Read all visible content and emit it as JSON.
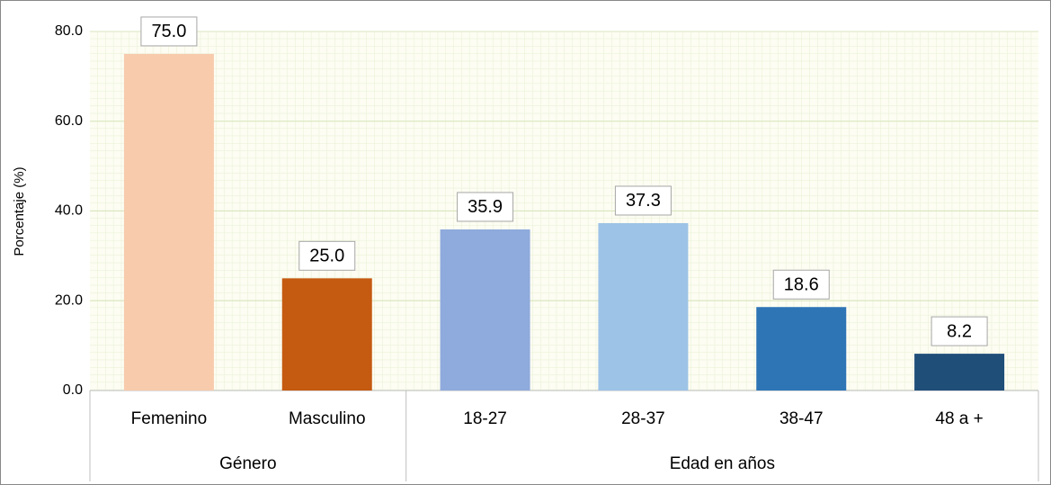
{
  "chart_data": {
    "type": "bar",
    "ylabel": "Porcentaje (%)",
    "groups": [
      {
        "name": "Género",
        "categories": [
          "Femenino",
          "Masculino"
        ],
        "values": [
          75.0,
          25.0
        ],
        "value_labels": [
          "75.0",
          "25.0"
        ],
        "colors": [
          "#f8cbad",
          "#c55a11"
        ]
      },
      {
        "name": "Edad en años",
        "categories": [
          "18-27",
          "28-37",
          "38-47",
          "48 a +"
        ],
        "values": [
          35.9,
          37.3,
          18.6,
          8.2
        ],
        "value_labels": [
          "35.9",
          "37.3",
          "18.6",
          "8.2"
        ],
        "colors": [
          "#8faadc",
          "#9dc3e6",
          "#2e75b6",
          "#1f4e79"
        ]
      }
    ],
    "ylim": [
      0,
      80
    ],
    "yticks": [
      {
        "value": 0,
        "label": "0.0"
      },
      {
        "value": 20,
        "label": "20.0"
      },
      {
        "value": 40,
        "label": "40.0"
      },
      {
        "value": 60,
        "label": "60.0"
      },
      {
        "value": 80,
        "label": "80.0"
      }
    ],
    "grid": true
  }
}
